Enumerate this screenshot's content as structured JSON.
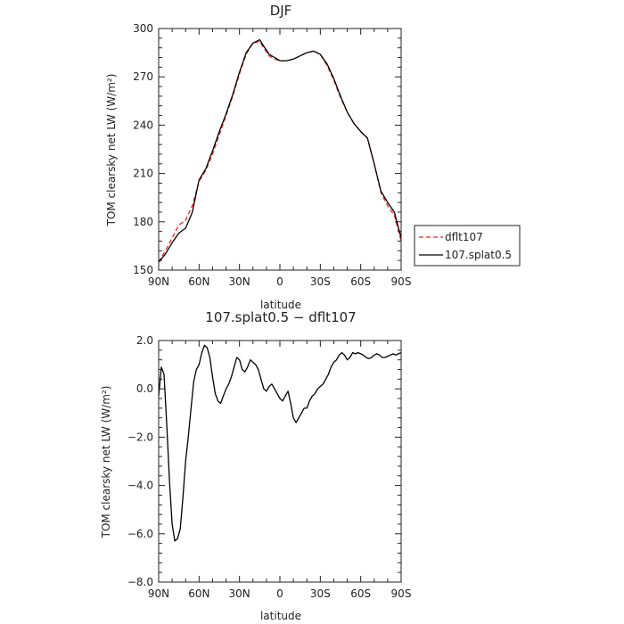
{
  "chart_data": [
    {
      "type": "line",
      "title": "DJF",
      "xlabel": "latitude",
      "ylabel": "TOM clearsky net LW (W/m²)",
      "ylim": [
        150,
        300
      ],
      "yticks": [
        150,
        180,
        210,
        240,
        270,
        300
      ],
      "ytick_labels": [
        "150",
        "180",
        "210",
        "240",
        "270",
        "300"
      ],
      "xlim": [
        90,
        -90
      ],
      "xticks": [
        90,
        60,
        30,
        0,
        -30,
        -60,
        -90
      ],
      "xtick_labels": [
        "90N",
        "60N",
        "30N",
        "0",
        "30S",
        "60S",
        "90S"
      ],
      "grid": false,
      "legend_position": "right",
      "series": [
        {
          "name": "dflt107",
          "color": "#e8251f",
          "dash": "dashed",
          "x": [
            90,
            85,
            80,
            75,
            70,
            65,
            60,
            55,
            50,
            45,
            40,
            35,
            30,
            25,
            20,
            15,
            12,
            8,
            4,
            0,
            -5,
            -10,
            -15,
            -20,
            -25,
            -30,
            -35,
            -40,
            -45,
            -50,
            -55,
            -60,
            -65,
            -70,
            -75,
            -80,
            -85,
            -90
          ],
          "values": [
            155,
            162,
            170,
            178,
            181,
            190,
            205,
            212,
            222,
            234,
            246,
            258,
            272,
            284,
            291,
            292,
            288,
            283,
            281,
            280,
            280,
            281,
            283,
            285,
            286,
            284,
            277,
            268,
            257,
            248,
            241,
            236,
            232,
            216,
            198,
            190,
            184,
            168
          ]
        },
        {
          "name": "107.splat0.5",
          "color": "#000000",
          "dash": "solid",
          "x": [
            90,
            85,
            80,
            75,
            70,
            65,
            60,
            55,
            50,
            45,
            40,
            35,
            30,
            25,
            20,
            15,
            12,
            8,
            4,
            0,
            -5,
            -10,
            -15,
            -20,
            -25,
            -30,
            -35,
            -40,
            -45,
            -50,
            -55,
            -60,
            -65,
            -70,
            -75,
            -80,
            -85,
            -90
          ],
          "values": [
            155,
            160,
            167,
            173,
            176,
            186,
            206,
            213,
            224,
            236,
            247,
            259,
            273,
            285,
            291,
            293,
            289,
            284,
            282,
            280,
            280,
            281,
            283,
            285,
            286,
            284,
            278,
            269,
            258,
            248,
            241,
            236,
            232,
            216,
            199,
            192,
            186,
            170
          ]
        }
      ]
    },
    {
      "type": "line",
      "title": "107.splat0.5 − dflt107",
      "xlabel": "latitude",
      "ylabel": "TOM clearsky net LW (W/m²)",
      "ylim": [
        -8,
        2
      ],
      "yticks": [
        -8,
        -6,
        -4,
        -2,
        0,
        2
      ],
      "ytick_labels": [
        "−8.0",
        "−6.0",
        "−4.0",
        "−2.0",
        "0.0",
        "2.0"
      ],
      "xlim": [
        90,
        -90
      ],
      "xticks": [
        90,
        60,
        30,
        0,
        -30,
        -60,
        -90
      ],
      "xtick_labels": [
        "90N",
        "60N",
        "30N",
        "0",
        "30S",
        "60S",
        "90S"
      ],
      "grid": false,
      "series": [
        {
          "color": "#000000",
          "dash": "solid",
          "x": [
            90,
            88,
            86,
            84,
            82,
            80,
            78,
            76,
            74,
            72,
            70,
            68,
            66,
            64,
            62,
            60,
            58,
            56,
            54,
            52,
            50,
            48,
            46,
            44,
            42,
            40,
            38,
            36,
            34,
            32,
            30,
            28,
            26,
            24,
            22,
            20,
            18,
            16,
            14,
            12,
            10,
            8,
            6,
            4,
            2,
            0,
            -2,
            -4,
            -6,
            -8,
            -10,
            -12,
            -14,
            -16,
            -18,
            -20,
            -22,
            -24,
            -26,
            -28,
            -30,
            -32,
            -34,
            -36,
            -38,
            -40,
            -42,
            -44,
            -46,
            -48,
            -50,
            -52,
            -54,
            -56,
            -58,
            -60,
            -62,
            -64,
            -66,
            -68,
            -70,
            -72,
            -74,
            -76,
            -78,
            -80,
            -82,
            -84,
            -86,
            -88,
            -90
          ],
          "values": [
            -0.3,
            0.9,
            0.6,
            -1.5,
            -3.8,
            -5.6,
            -6.3,
            -6.2,
            -5.8,
            -4.5,
            -3.0,
            -2.0,
            -0.8,
            0.3,
            0.8,
            1.0,
            1.5,
            1.8,
            1.7,
            1.3,
            0.5,
            -0.2,
            -0.5,
            -0.6,
            -0.3,
            0.0,
            0.2,
            0.5,
            0.9,
            1.3,
            1.2,
            0.8,
            0.7,
            0.9,
            1.2,
            1.1,
            1.0,
            0.8,
            0.4,
            0.0,
            -0.1,
            0.1,
            0.2,
            0.0,
            -0.2,
            -0.4,
            -0.5,
            -0.3,
            -0.1,
            -0.6,
            -1.2,
            -1.4,
            -1.2,
            -1.0,
            -0.8,
            -0.8,
            -0.5,
            -0.3,
            -0.2,
            0.0,
            0.1,
            0.2,
            0.4,
            0.6,
            0.9,
            1.1,
            1.2,
            1.4,
            1.5,
            1.4,
            1.2,
            1.3,
            1.5,
            1.45,
            1.5,
            1.45,
            1.4,
            1.3,
            1.25,
            1.3,
            1.4,
            1.45,
            1.4,
            1.3,
            1.3,
            1.35,
            1.4,
            1.45,
            1.4,
            1.45,
            1.5
          ]
        }
      ]
    }
  ]
}
